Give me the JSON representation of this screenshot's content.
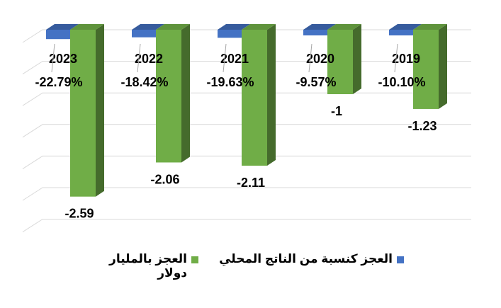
{
  "chart_data": {
    "type": "bar",
    "title": "",
    "xlabel": "",
    "ylabel": "",
    "categories": [
      "2023",
      "2022",
      "2021",
      "2020",
      "2019"
    ],
    "series": [
      {
        "name": "العجز كنسبة من الناتج المحلي",
        "color": "#4472C4",
        "values": [
          -22.79,
          -18.42,
          -19.63,
          -9.57,
          -10.1
        ],
        "labels": [
          "-22.79%",
          "-18.42%",
          "-19.63%",
          "-9.57%",
          "-10.10%"
        ]
      },
      {
        "name": "العجز بالمليار دولار",
        "color": "#70AD47",
        "values": [
          -2.59,
          -2.06,
          -2.11,
          -1,
          -1.23
        ],
        "labels": [
          "-2.59",
          "-2.06",
          "-2.11",
          "-1",
          "-1.23"
        ]
      }
    ],
    "legend_position": "bottom",
    "grid": true,
    "axis_tick_labels_visible": false
  }
}
